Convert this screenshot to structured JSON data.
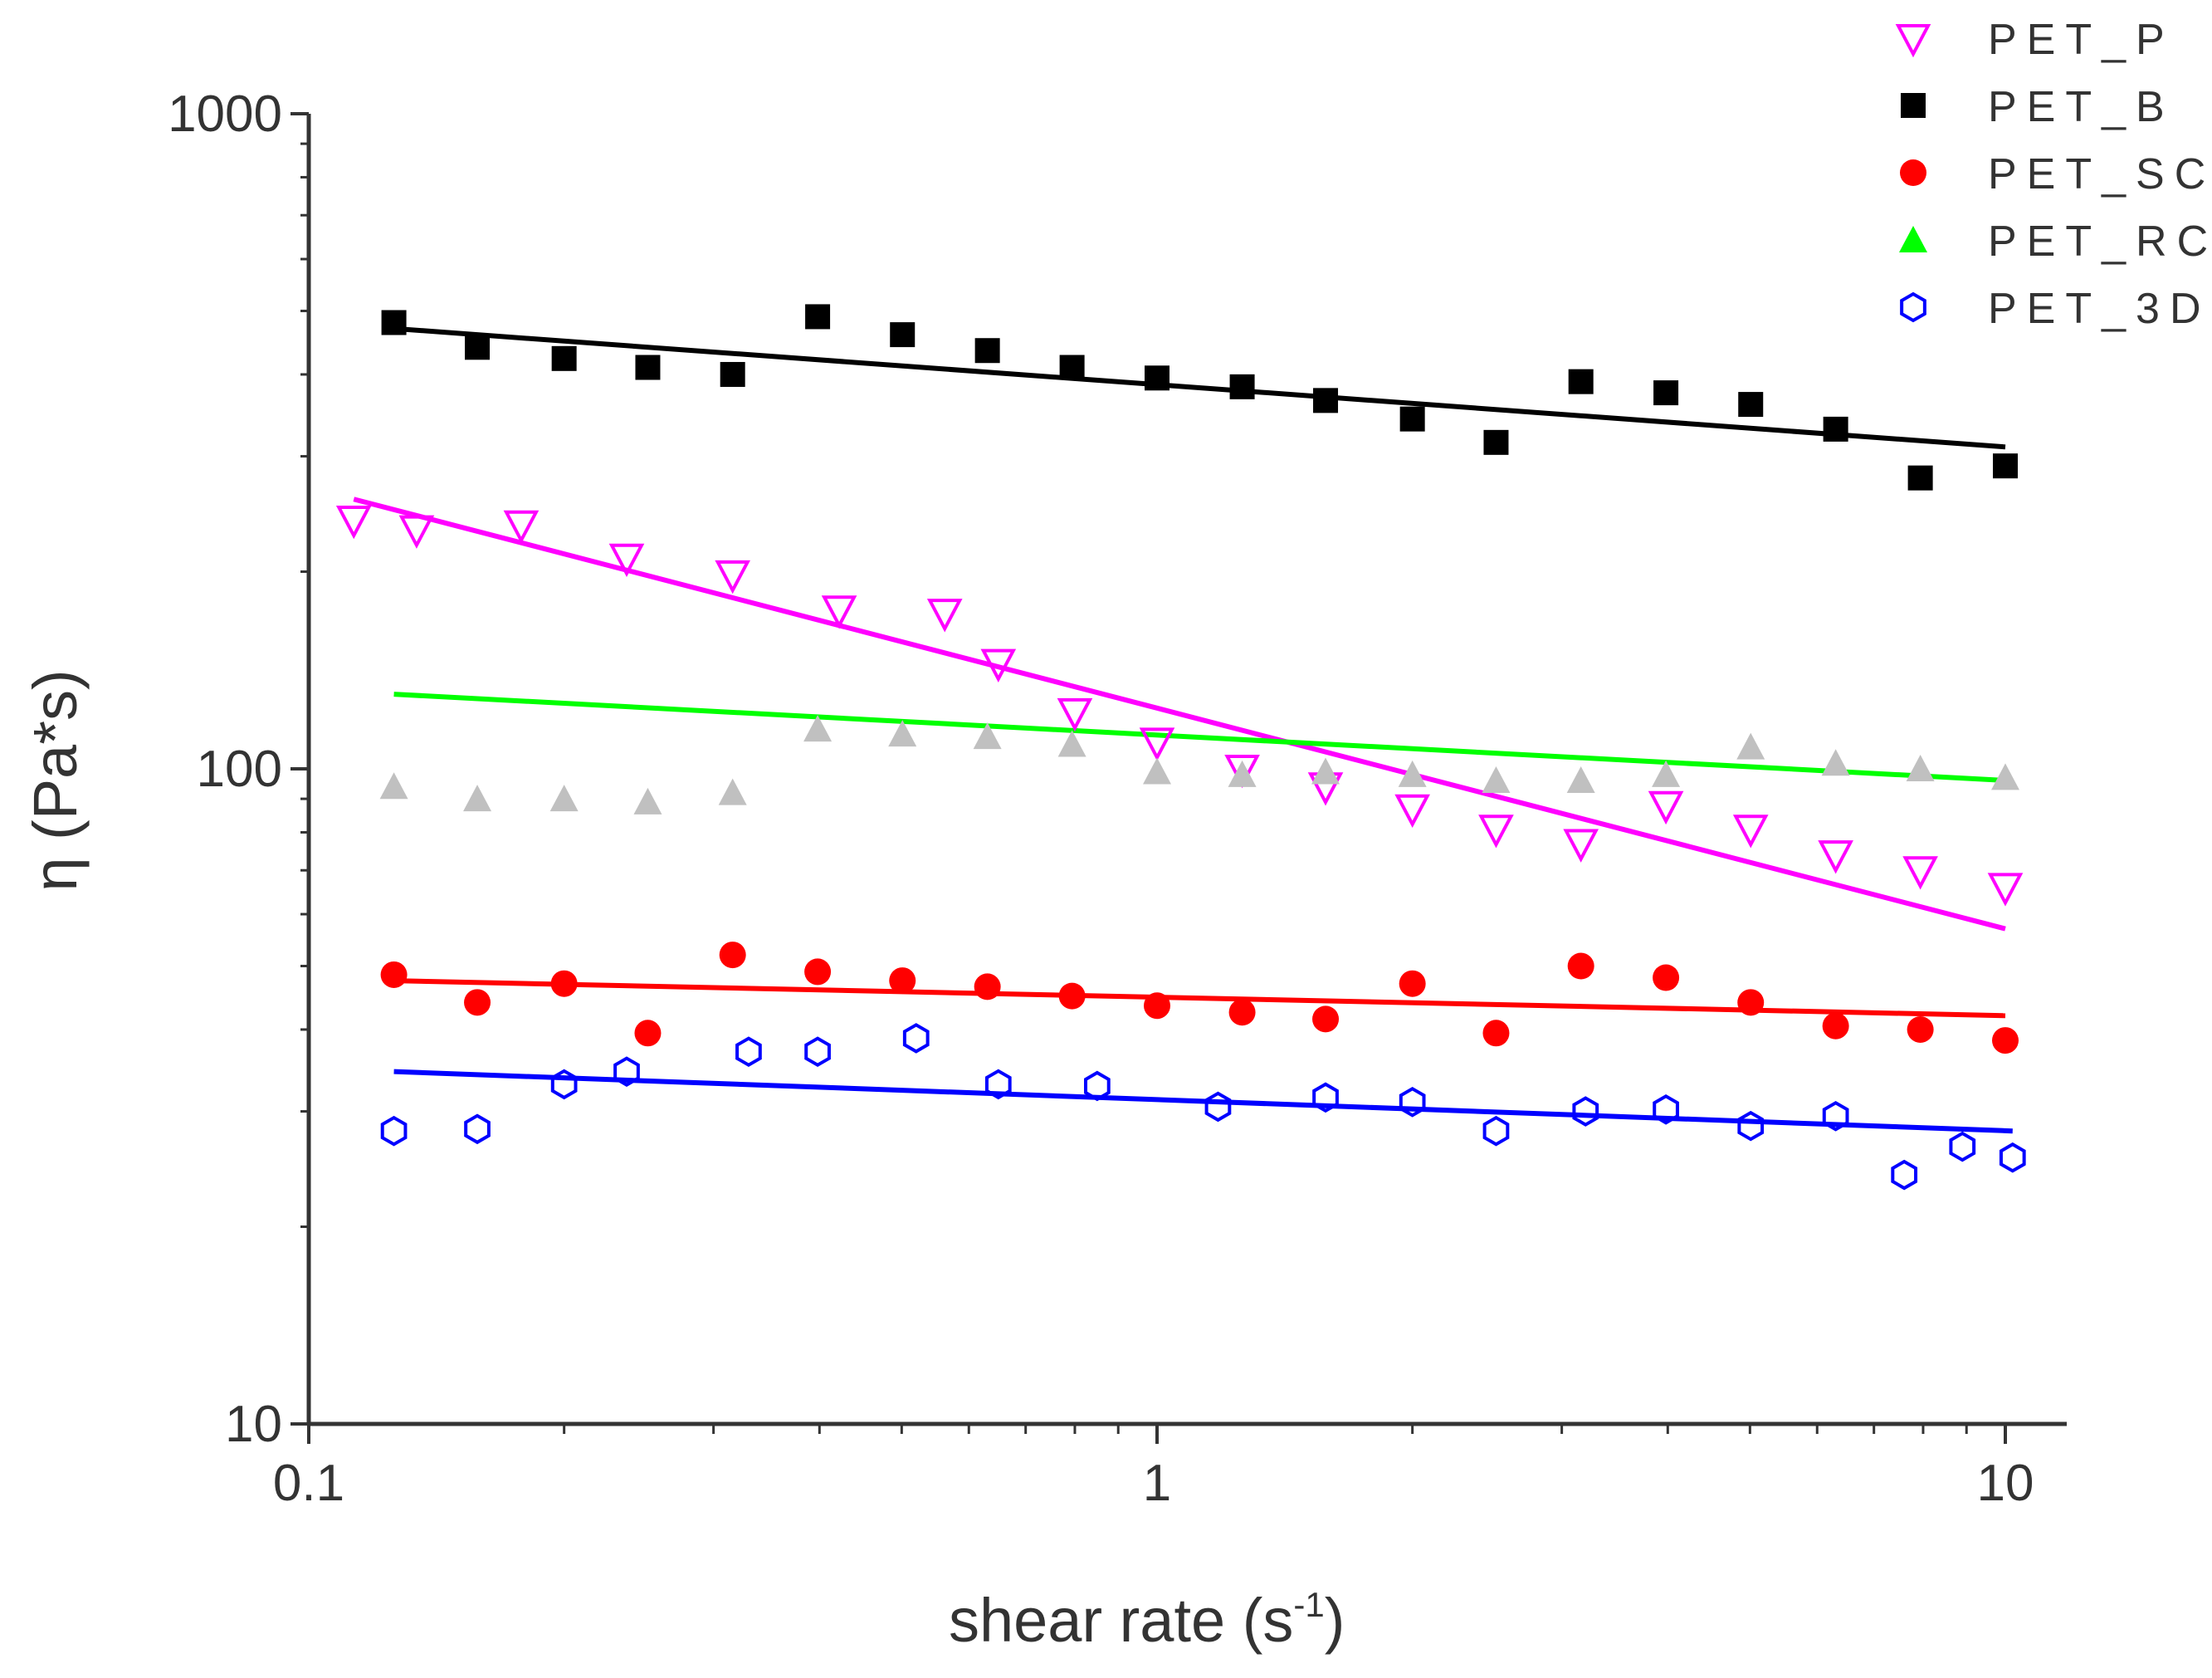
{
  "chart_data": {
    "type": "scatter",
    "xlabel_main": "shear rate (s",
    "xlabel_sup": "-1",
    "xlabel_end": ")",
    "ylabel": "η (Pa*s)",
    "xscale": "log",
    "yscale": "log",
    "xlim": [
      0.1,
      12
    ],
    "ylim": [
      10,
      1000
    ],
    "xticks": [
      {
        "value": 0.1,
        "label": "0.1"
      },
      {
        "value": 1,
        "label": "1"
      },
      {
        "value": 10,
        "label": "10"
      }
    ],
    "yticks": [
      {
        "value": 10,
        "label": "10"
      },
      {
        "value": 100,
        "label": "100"
      },
      {
        "value": 1000,
        "label": "1000"
      }
    ],
    "grid": false,
    "legend_position": "top-right",
    "series": [
      {
        "name": "PET_P",
        "marker": "triangle-down-open",
        "color": "#ff00ff",
        "points": [
          [
            0.113,
            240
          ],
          [
            0.134,
            232
          ],
          [
            0.178,
            236
          ],
          [
            0.237,
            210
          ],
          [
            0.316,
            198
          ],
          [
            0.422,
            175
          ],
          [
            0.562,
            173
          ],
          [
            0.65,
            145
          ],
          [
            0.8,
            122
          ],
          [
            1.0,
            110
          ],
          [
            1.26,
            100
          ],
          [
            1.58,
            94
          ],
          [
            2.0,
            87
          ],
          [
            2.51,
            81
          ],
          [
            3.16,
            77
          ],
          [
            3.98,
            88
          ],
          [
            5.01,
            81
          ],
          [
            6.31,
            74
          ],
          [
            7.94,
            70
          ],
          [
            10.0,
            66
          ]
        ],
        "fit": [
          [
            0.113,
            258
          ],
          [
            10.0,
            57
          ]
        ]
      },
      {
        "name": "PET_B",
        "marker": "square-filled",
        "color": "#000000",
        "points": [
          [
            0.126,
            480
          ],
          [
            0.158,
            440
          ],
          [
            0.2,
            423
          ],
          [
            0.251,
            410
          ],
          [
            0.316,
            400
          ],
          [
            0.398,
            490
          ],
          [
            0.501,
            460
          ],
          [
            0.631,
            435
          ],
          [
            0.794,
            410
          ],
          [
            1.0,
            395
          ],
          [
            1.26,
            383
          ],
          [
            1.58,
            365
          ],
          [
            2.0,
            342
          ],
          [
            2.51,
            315
          ],
          [
            3.16,
            390
          ],
          [
            3.98,
            375
          ],
          [
            5.01,
            360
          ],
          [
            6.31,
            330
          ],
          [
            7.94,
            278
          ],
          [
            10.0,
            290
          ]
        ],
        "fit": [
          [
            0.126,
            470
          ],
          [
            10.0,
            310
          ]
        ]
      },
      {
        "name": "PET_SC",
        "marker": "circle-filled",
        "color": "#ff0000",
        "points": [
          [
            0.126,
            48.5
          ],
          [
            0.158,
            44
          ],
          [
            0.2,
            47
          ],
          [
            0.251,
            39.5
          ],
          [
            0.316,
            52
          ],
          [
            0.398,
            49
          ],
          [
            0.501,
            47.5
          ],
          [
            0.631,
            46.5
          ],
          [
            0.794,
            45
          ],
          [
            1.0,
            43.5
          ],
          [
            1.26,
            42.5
          ],
          [
            1.58,
            41.5
          ],
          [
            2.0,
            47
          ],
          [
            2.51,
            39.5
          ],
          [
            3.16,
            50
          ],
          [
            3.98,
            48
          ],
          [
            5.01,
            44
          ],
          [
            6.31,
            40.5
          ],
          [
            7.94,
            40
          ],
          [
            10.0,
            38.5
          ]
        ],
        "fit": [
          [
            0.126,
            47.5
          ],
          [
            10.0,
            42
          ]
        ]
      },
      {
        "name": "PET_RC",
        "marker": "triangle-up-filled",
        "color": "#00ff00",
        "fit": [
          [
            0.126,
            130
          ],
          [
            10.0,
            96
          ]
        ]
      },
      {
        "name": "",
        "marker": "triangle-up-filled",
        "color": "#c0c0c0",
        "points": [
          [
            0.126,
            94
          ],
          [
            0.158,
            90
          ],
          [
            0.2,
            90
          ],
          [
            0.251,
            89
          ],
          [
            0.316,
            92
          ],
          [
            0.398,
            115
          ],
          [
            0.501,
            113
          ],
          [
            0.631,
            112
          ],
          [
            0.794,
            109
          ],
          [
            1.0,
            99
          ],
          [
            1.26,
            98
          ],
          [
            1.58,
            99
          ],
          [
            2.0,
            98
          ],
          [
            2.51,
            96
          ],
          [
            3.16,
            96
          ],
          [
            3.98,
            98
          ],
          [
            5.01,
            108
          ],
          [
            6.31,
            102
          ],
          [
            7.94,
            100
          ],
          [
            10.0,
            97
          ]
        ]
      },
      {
        "name": "PET_3D",
        "marker": "hexagon-open",
        "color": "#0000ff",
        "points": [
          [
            0.126,
            28
          ],
          [
            0.158,
            28.2
          ],
          [
            0.2,
            33
          ],
          [
            0.237,
            34.5
          ],
          [
            0.33,
            37
          ],
          [
            0.398,
            37
          ],
          [
            0.52,
            38.8
          ],
          [
            0.65,
            33
          ],
          [
            0.85,
            32.8
          ],
          [
            1.18,
            30.5
          ],
          [
            1.58,
            31.5
          ],
          [
            2.0,
            31
          ],
          [
            2.51,
            28
          ],
          [
            3.2,
            30
          ],
          [
            3.98,
            30.2
          ],
          [
            5.01,
            28.5
          ],
          [
            6.31,
            29.5
          ],
          [
            7.6,
            24
          ],
          [
            8.9,
            26.5
          ],
          [
            10.2,
            25.5
          ]
        ],
        "fit": [
          [
            0.126,
            34.5
          ],
          [
            10.2,
            28
          ]
        ]
      }
    ]
  }
}
